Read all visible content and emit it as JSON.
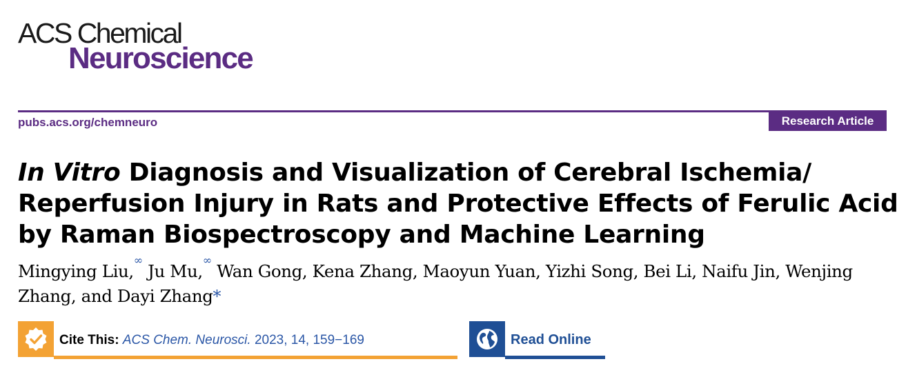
{
  "journal": {
    "name_line1": "ACS Chemical",
    "name_line2": "Neuroscience",
    "url": "pubs.acs.org/chemneuro",
    "article_type": "Research Article",
    "brand_color": "#5b2c83"
  },
  "article": {
    "title_italic": "In Vitro",
    "title_rest": " Diagnosis and Visualization of Cerebral Ischemia/ Reperfusion Injury in Rats and Protective Effects of Ferulic Acid by Raman Biospectroscopy and Machine Learning",
    "authors": [
      {
        "name": "Mingying Liu,",
        "mark": "∞"
      },
      {
        "name": " Ju Mu,",
        "mark": "∞"
      },
      {
        "name": " Wan Gong, Kena Zhang, Maoyun Yuan, Yizhi Song, Bei Li, Naifu Jin, Wenjing Zhang, and Dayi Zhang",
        "mark": ""
      }
    ],
    "corresponding_mark": "*"
  },
  "cite": {
    "label": "Cite This:",
    "journal_abbrev": "ACS Chem. Neurosci.",
    "details": " 2023, 14, 159−169",
    "icon": "checkmark-badge-icon",
    "color": "#f3a234"
  },
  "read_online": {
    "label": "Read Online",
    "icon": "globe-icon",
    "color": "#1f4f95"
  }
}
